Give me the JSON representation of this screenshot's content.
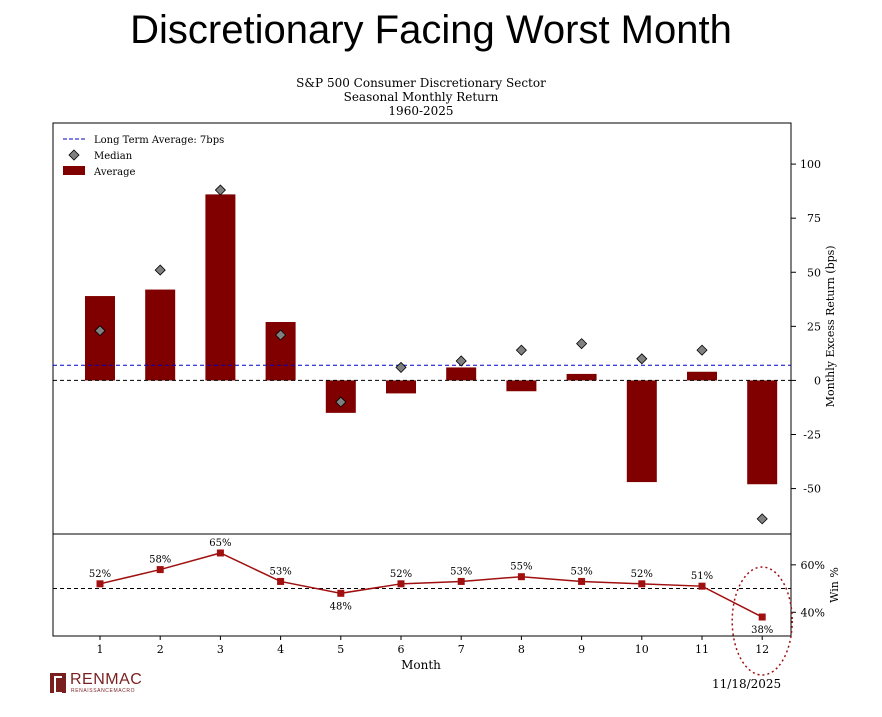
{
  "slide_title": "Discretionary Facing Worst Month",
  "chart_data": {
    "type": "bar",
    "title_lines": [
      "S&P 500 Consumer Discretionary Sector",
      "Seasonal Monthly Return",
      "1960-2025"
    ],
    "categories": [
      "1",
      "2",
      "3",
      "4",
      "5",
      "6",
      "7",
      "8",
      "9",
      "10",
      "11",
      "12"
    ],
    "series": [
      {
        "name": "Average",
        "values": [
          39,
          42,
          86,
          27,
          -15,
          -6,
          6,
          -5,
          3,
          -47,
          4,
          -48
        ],
        "color": "#800000"
      },
      {
        "name": "Median",
        "values": [
          23,
          51,
          88,
          21,
          -10,
          6,
          9,
          14,
          17,
          10,
          14,
          -64
        ],
        "color": "#808080"
      }
    ],
    "long_term_average": {
      "label": "Long Term Average: 7bps",
      "value": 7,
      "color": "#0000cc"
    },
    "ylabel": "Monthly Excess Return (bps)",
    "ylim": [
      -71,
      119
    ],
    "yticks": [
      100,
      75,
      50,
      25,
      0,
      -25,
      -50
    ],
    "win_pct": {
      "values": [
        52,
        58,
        65,
        53,
        48,
        52,
        53,
        55,
        53,
        52,
        51,
        38
      ],
      "labels": [
        "52%",
        "58%",
        "65%",
        "53%",
        "48%",
        "52%",
        "53%",
        "55%",
        "53%",
        "52%",
        "51%",
        "38%"
      ],
      "ylabel": "Win %",
      "ylim": [
        30,
        73
      ],
      "yticks": [
        60,
        40
      ],
      "ytick_labels": [
        "60%",
        "40%"
      ],
      "reference": 50,
      "color": "#a01010",
      "highlight_month": "12"
    },
    "xlabel": "Month",
    "legend": [
      "Long Term Average: 7bps",
      "Median",
      "Average"
    ],
    "legend_position": "top-left"
  },
  "brand": {
    "name": "RENMAC",
    "tagline": "RENAISSANCEMACRO"
  },
  "date_label": "11/18/2025"
}
